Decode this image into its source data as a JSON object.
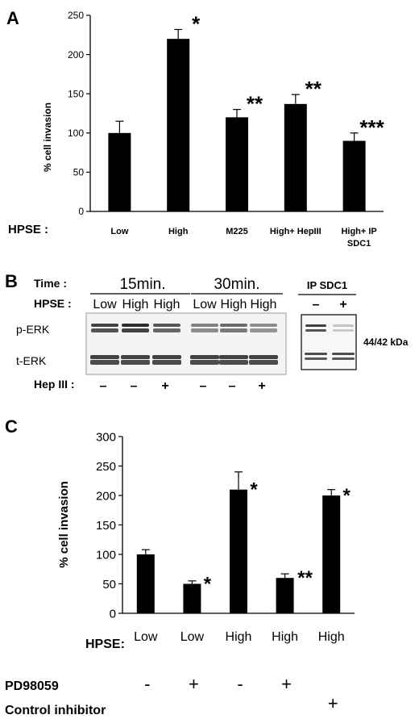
{
  "chart_data": [
    {
      "type": "bar",
      "panel": "A",
      "ylabel": "% cell invasion",
      "ylim": [
        0,
        250
      ],
      "yticks": [
        0,
        50,
        100,
        150,
        200,
        250
      ],
      "row_label": "HPSE :",
      "categories": [
        "Low",
        "High",
        "M225",
        "High+ HepIII",
        "High+  IP SDC1"
      ],
      "category_lines": [
        [
          "Low"
        ],
        [
          "High"
        ],
        [
          "M225"
        ],
        [
          "High+ HepIII"
        ],
        [
          "High+  IP",
          "SDC1"
        ]
      ],
      "values": [
        100,
        220,
        120,
        137,
        90
      ],
      "errors": [
        15,
        12,
        10,
        12,
        10
      ],
      "annotations": [
        "",
        "*",
        "**",
        "**",
        "***"
      ],
      "bar_color": "#000000"
    },
    {
      "type": "blot",
      "panel": "B",
      "time_label": "Time :",
      "time_groups": [
        "15min.",
        "30min."
      ],
      "ip_label": "IP SDC1",
      "hpse_label": "HPSE :",
      "hpse_lanes": [
        "Low",
        "High",
        "High",
        "Low",
        "High",
        "High"
      ],
      "ip_lanes": [
        "–",
        "+"
      ],
      "rows": [
        "p-ERK",
        "t-ERK"
      ],
      "hep_label": "Hep III :",
      "hep_lanes": [
        "–",
        "–",
        "+",
        "–",
        "–",
        "+"
      ],
      "size_label": "44/42 kDa"
    },
    {
      "type": "bar",
      "panel": "C",
      "ylabel": "% cell invasion",
      "ylim": [
        0,
        300
      ],
      "yticks": [
        0,
        50,
        100,
        150,
        200,
        250,
        300
      ],
      "row_label": "HPSE:",
      "categories": [
        "Low",
        "Low",
        "High",
        "High",
        "High"
      ],
      "values": [
        100,
        50,
        210,
        60,
        200
      ],
      "errors": [
        8,
        5,
        30,
        7,
        10
      ],
      "annotations": [
        "",
        "*",
        "*",
        "**",
        "*"
      ],
      "treatments": [
        {
          "label": "PD98059",
          "marks": [
            "-",
            "+",
            "-",
            "+",
            ""
          ]
        },
        {
          "label": "Control inhibitor",
          "marks": [
            "",
            "",
            "",
            "",
            "+"
          ]
        }
      ],
      "bar_color": "#000000"
    }
  ]
}
